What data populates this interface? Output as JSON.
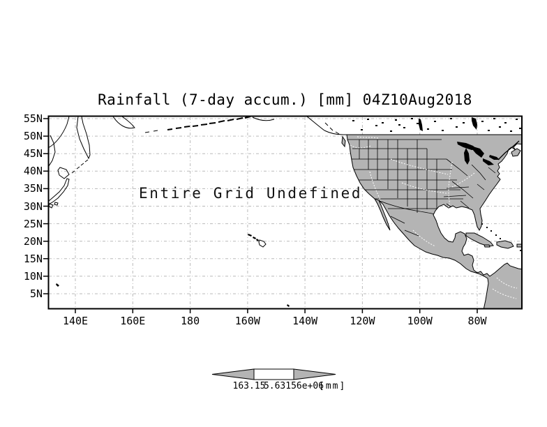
{
  "title": "Rainfall (7-day accum.) [mm] 04Z10Aug2018",
  "annotation": "Entire Grid Undefined",
  "axes": {
    "lat_labels": [
      "55N",
      "50N",
      "45N",
      "40N",
      "35N",
      "30N",
      "25N",
      "20N",
      "15N",
      "10N",
      "5N"
    ],
    "lon_labels": [
      "140E",
      "160E",
      "180",
      "160W",
      "140W",
      "120W",
      "100W",
      "80W"
    ]
  },
  "colorbar": {
    "min_label": "163.15",
    "max_label": "5.63156e+06",
    "units_label": "[mm]"
  },
  "colors": {
    "background": "#ffffff",
    "land": "#b4b4b4",
    "gridline": "#b9b9b9",
    "frame": "#000000",
    "river": "#ffffff"
  },
  "chart_data": {
    "type": "heatmap",
    "title": "Rainfall (7-day accum.) [mm] 04Z10Aug2018",
    "variable": "Rainfall (7-day accum.)",
    "units": "mm",
    "valid_time": "04Z10Aug2018",
    "x_ticks": [
      "140E",
      "160E",
      "180",
      "160W",
      "140W",
      "120W",
      "100W",
      "80W"
    ],
    "y_ticks": [
      "55N",
      "50N",
      "45N",
      "40N",
      "35N",
      "30N",
      "25N",
      "20N",
      "15N",
      "10N",
      "5N"
    ],
    "x_range": [
      "130E",
      "64W"
    ],
    "y_range": [
      "0N",
      "55.5N"
    ],
    "grid": true,
    "values": [],
    "data_status": "Entire Grid Undefined",
    "colorbar_labels": [
      "163.15",
      "5.63156e+06"
    ],
    "legend_position": "bottom-center"
  }
}
